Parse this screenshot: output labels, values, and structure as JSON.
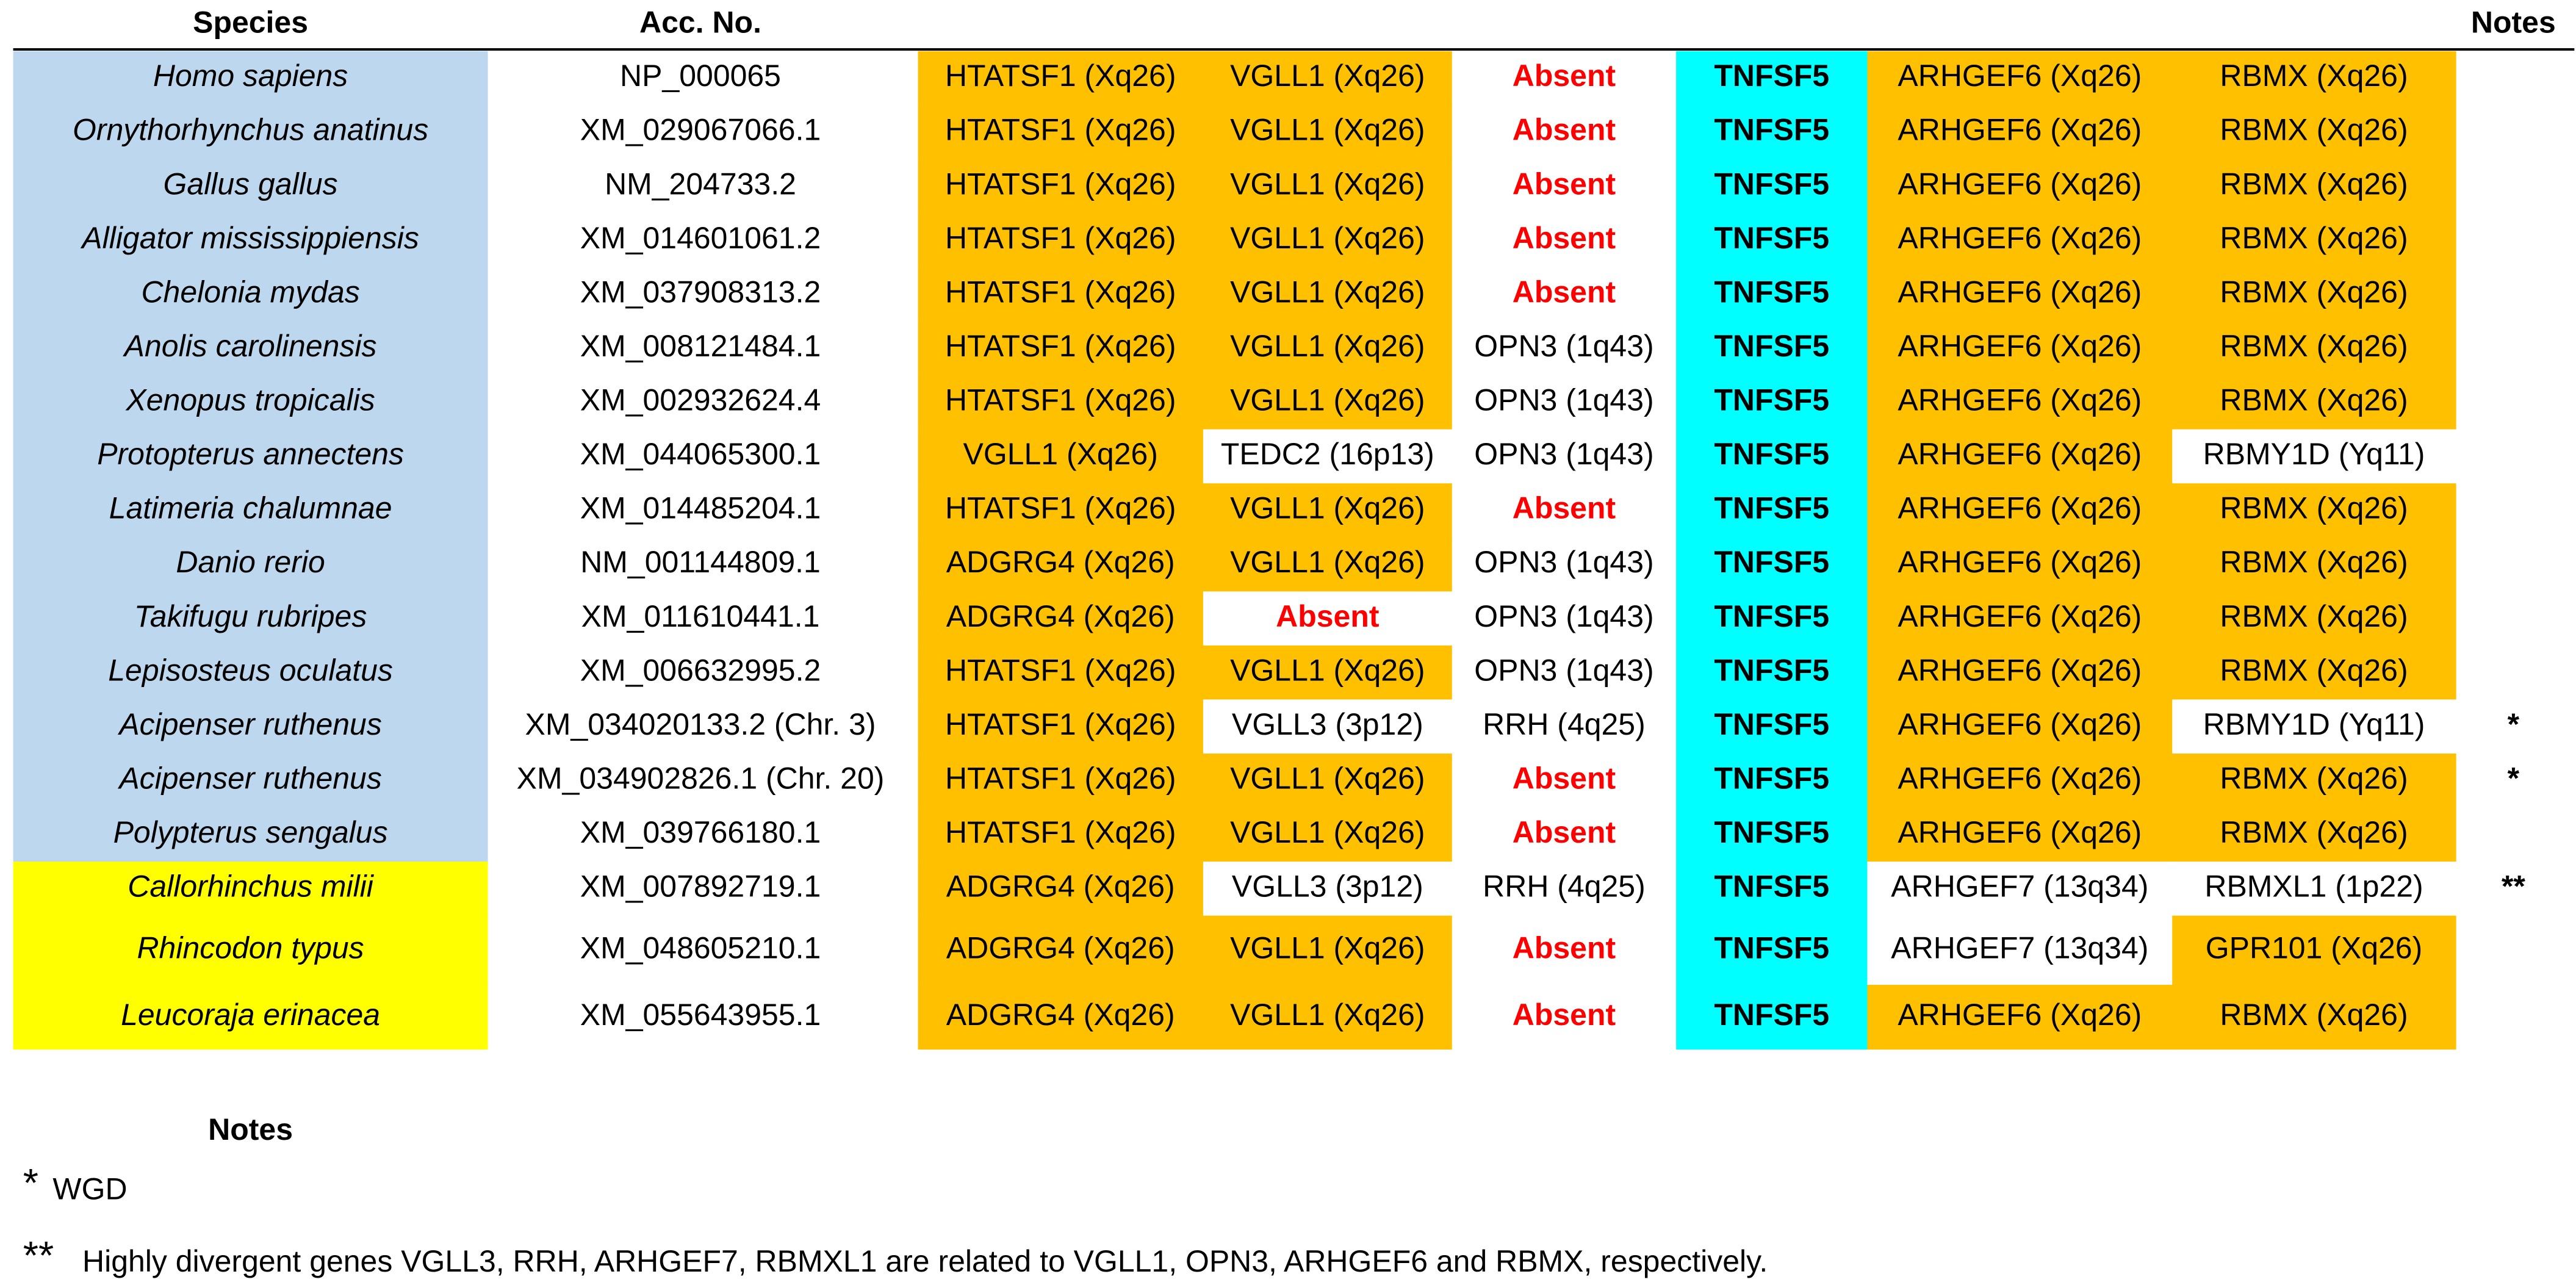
{
  "header": {
    "species": "Species",
    "acc": "Acc. No.",
    "notes": "Notes"
  },
  "table": {
    "rows": [
      {
        "species": "Homo sapiens",
        "fill": "#bdd7ee",
        "acc": "NP_000065",
        "genes": [
          [
            "HTATSF1 (Xq26)",
            "#ffc000"
          ],
          [
            "VGLL1 (Xq26)",
            "#ffc000"
          ],
          [
            "Absent",
            "#ffffff",
            "#ff0000"
          ],
          [
            "TNFSF5",
            "#00ffff"
          ],
          [
            "ARHGEF6 (Xq26)",
            "#ffc000"
          ],
          [
            "RBMX (Xq26)",
            "#ffc000"
          ]
        ]
      },
      {
        "species": "Ornythorhynchus anatinus",
        "fill": "#bdd7ee",
        "acc": "XM_029067066.1",
        "genes": [
          [
            "HTATSF1 (Xq26)",
            "#ffc000"
          ],
          [
            "VGLL1 (Xq26)",
            "#ffc000"
          ],
          [
            "Absent",
            "#ffffff",
            "#ff0000"
          ],
          [
            "TNFSF5",
            "#00ffff"
          ],
          [
            "ARHGEF6 (Xq26)",
            "#ffc000"
          ],
          [
            "RBMX (Xq26)",
            "#ffc000"
          ]
        ]
      },
      {
        "species": "Gallus gallus",
        "fill": "#bdd7ee",
        "acc": "NM_204733.2",
        "genes": [
          [
            "HTATSF1 (Xq26)",
            "#ffc000"
          ],
          [
            "VGLL1 (Xq26)",
            "#ffc000"
          ],
          [
            "Absent",
            "#ffffff",
            "#ff0000"
          ],
          [
            "TNFSF5",
            "#00ffff"
          ],
          [
            "ARHGEF6 (Xq26)",
            "#ffc000"
          ],
          [
            "RBMX (Xq26)",
            "#ffc000"
          ]
        ]
      },
      {
        "species": "Alligator mississippiensis",
        "fill": "#bdd7ee",
        "acc": "XM_014601061.2",
        "genes": [
          [
            "HTATSF1 (Xq26)",
            "#ffc000"
          ],
          [
            "VGLL1 (Xq26)",
            "#ffc000"
          ],
          [
            "Absent",
            "#ffffff",
            "#ff0000"
          ],
          [
            "TNFSF5",
            "#00ffff"
          ],
          [
            "ARHGEF6 (Xq26)",
            "#ffc000"
          ],
          [
            "RBMX (Xq26)",
            "#ffc000"
          ]
        ]
      },
      {
        "species": "Chelonia mydas",
        "fill": "#bdd7ee",
        "acc": "XM_037908313.2",
        "genes": [
          [
            "HTATSF1 (Xq26)",
            "#ffc000"
          ],
          [
            "VGLL1 (Xq26)",
            "#ffc000"
          ],
          [
            "Absent",
            "#ffffff",
            "#ff0000"
          ],
          [
            "TNFSF5",
            "#00ffff"
          ],
          [
            "ARHGEF6 (Xq26)",
            "#ffc000"
          ],
          [
            "RBMX (Xq26)",
            "#ffc000"
          ]
        ]
      },
      {
        "species": "Anolis carolinensis",
        "fill": "#bdd7ee",
        "acc": "XM_008121484.1",
        "genes": [
          [
            "HTATSF1 (Xq26)",
            "#ffc000"
          ],
          [
            "VGLL1 (Xq26)",
            "#ffc000"
          ],
          [
            "OPN3 (1q43)",
            "#ffffff"
          ],
          [
            "TNFSF5",
            "#00ffff"
          ],
          [
            "ARHGEF6 (Xq26)",
            "#ffc000"
          ],
          [
            "RBMX (Xq26)",
            "#ffc000"
          ]
        ]
      },
      {
        "species": "Xenopus tropicalis",
        "fill": "#bdd7ee",
        "acc": "XM_002932624.4",
        "genes": [
          [
            "HTATSF1 (Xq26)",
            "#ffc000"
          ],
          [
            "VGLL1 (Xq26)",
            "#ffc000"
          ],
          [
            "OPN3 (1q43)",
            "#ffffff"
          ],
          [
            "TNFSF5",
            "#00ffff"
          ],
          [
            "ARHGEF6 (Xq26)",
            "#ffc000"
          ],
          [
            "RBMX (Xq26)",
            "#ffc000"
          ]
        ]
      },
      {
        "species": "Protopterus annectens",
        "fill": "#bdd7ee",
        "acc": "XM_044065300.1",
        "genes": [
          [
            "VGLL1 (Xq26)",
            "#ffc000"
          ],
          [
            "TEDC2 (16p13)",
            "#ffffff"
          ],
          [
            "OPN3 (1q43)",
            "#ffffff"
          ],
          [
            "TNFSF5",
            "#00ffff"
          ],
          [
            "ARHGEF6 (Xq26)",
            "#ffc000"
          ],
          [
            "RBMY1D (Yq11)",
            "#ffffff"
          ]
        ]
      },
      {
        "species": "Latimeria chalumnae",
        "fill": "#bdd7ee",
        "acc": "XM_014485204.1",
        "genes": [
          [
            "HTATSF1 (Xq26)",
            "#ffc000"
          ],
          [
            "VGLL1 (Xq26)",
            "#ffc000"
          ],
          [
            "Absent",
            "#ffffff",
            "#ff0000"
          ],
          [
            "TNFSF5",
            "#00ffff"
          ],
          [
            "ARHGEF6 (Xq26)",
            "#ffc000"
          ],
          [
            "RBMX (Xq26)",
            "#ffc000"
          ]
        ]
      },
      {
        "species": "Danio rerio",
        "fill": "#bdd7ee",
        "acc": "NM_001144809.1",
        "genes": [
          [
            "ADGRG4 (Xq26)",
            "#ffc000"
          ],
          [
            "VGLL1 (Xq26)",
            "#ffc000"
          ],
          [
            "OPN3 (1q43)",
            "#ffffff"
          ],
          [
            "TNFSF5",
            "#00ffff"
          ],
          [
            "ARHGEF6 (Xq26)",
            "#ffc000"
          ],
          [
            "RBMX (Xq26)",
            "#ffc000"
          ]
        ]
      },
      {
        "species": "Takifugu rubripes",
        "fill": "#bdd7ee",
        "acc": "XM_011610441.1",
        "genes": [
          [
            "ADGRG4 (Xq26)",
            "#ffc000"
          ],
          [
            "Absent",
            "#ffffff",
            "#ff0000"
          ],
          [
            "OPN3 (1q43)",
            "#ffffff"
          ],
          [
            "TNFSF5",
            "#00ffff"
          ],
          [
            "ARHGEF6 (Xq26)",
            "#ffc000"
          ],
          [
            "RBMX (Xq26)",
            "#ffc000"
          ]
        ]
      },
      {
        "species": "Lepisosteus oculatus",
        "fill": "#bdd7ee",
        "acc": "XM_006632995.2",
        "genes": [
          [
            "HTATSF1 (Xq26)",
            "#ffc000"
          ],
          [
            "VGLL1 (Xq26)",
            "#ffc000"
          ],
          [
            "OPN3 (1q43)",
            "#ffffff"
          ],
          [
            "TNFSF5",
            "#00ffff"
          ],
          [
            "ARHGEF6 (Xq26)",
            "#ffc000"
          ],
          [
            "RBMX (Xq26)",
            "#ffc000"
          ]
        ]
      },
      {
        "species": "Acipenser ruthenus",
        "fill": "#bdd7ee",
        "acc": "XM_034020133.2 (Chr. 3)",
        "genes": [
          [
            "HTATSF1 (Xq26)",
            "#ffc000"
          ],
          [
            "VGLL3 (3p12)",
            "#ffffff"
          ],
          [
            "RRH (4q25)",
            "#ffffff"
          ],
          [
            "TNFSF5",
            "#00ffff"
          ],
          [
            "ARHGEF6 (Xq26)",
            "#ffc000"
          ],
          [
            "RBMY1D (Yq11)",
            "#ffffff"
          ]
        ],
        "note": "*"
      },
      {
        "species": "Acipenser ruthenus",
        "fill": "#bdd7ee",
        "acc": "XM_034902826.1 (Chr. 20)",
        "genes": [
          [
            "HTATSF1 (Xq26)",
            "#ffc000"
          ],
          [
            "VGLL1 (Xq26)",
            "#ffc000"
          ],
          [
            "Absent",
            "#ffffff",
            "#ff0000"
          ],
          [
            "TNFSF5",
            "#00ffff"
          ],
          [
            "ARHGEF6 (Xq26)",
            "#ffc000"
          ],
          [
            "RBMX (Xq26)",
            "#ffc000"
          ]
        ],
        "note": "*"
      },
      {
        "species": "Polypterus sengalus",
        "fill": "#bdd7ee",
        "acc": "XM_039766180.1",
        "genes": [
          [
            "HTATSF1 (Xq26)",
            "#ffc000"
          ],
          [
            "VGLL1 (Xq26)",
            "#ffc000"
          ],
          [
            "Absent",
            "#ffffff",
            "#ff0000"
          ],
          [
            "TNFSF5",
            "#00ffff"
          ],
          [
            "ARHGEF6 (Xq26)",
            "#ffc000"
          ],
          [
            "RBMX (Xq26)",
            "#ffc000"
          ]
        ]
      },
      {
        "species": "Callorhinchus milii",
        "fill": "#ffff00",
        "acc": "XM_007892719.1",
        "genes": [
          [
            "ADGRG4 (Xq26)",
            "#ffc000"
          ],
          [
            "VGLL3 (3p12)",
            "#ffffff"
          ],
          [
            "RRH (4q25)",
            "#ffffff"
          ],
          [
            "TNFSF5",
            "#00ffff"
          ],
          [
            "ARHGEF7 (13q34)",
            "#ffffff"
          ],
          [
            "RBMXL1 (1p22)",
            "#ffffff"
          ]
        ],
        "note": "**"
      },
      {
        "species": "Rhincodon typus",
        "fill": "#ffff00",
        "acc": "XM_048605210.1",
        "genes": [
          [
            "ADGRG4 (Xq26)",
            "#ffc000"
          ],
          [
            "VGLL1 (Xq26)",
            "#ffc000"
          ],
          [
            "Absent",
            "#ffffff",
            "#ff0000"
          ],
          [
            "TNFSF5",
            "#00ffff"
          ],
          [
            "ARHGEF7 (13q34)",
            "#ffffff"
          ],
          [
            "GPR101 (Xq26)",
            "#ffc000"
          ]
        ]
      },
      {
        "species": "Leucoraja erinacea",
        "fill": "#ffff00",
        "acc": "XM_055643955.1",
        "genes": [
          [
            "ADGRG4 (Xq26)",
            "#ffc000"
          ],
          [
            "VGLL1 (Xq26)",
            "#ffc000"
          ],
          [
            "Absent",
            "#ffffff",
            "#ff0000"
          ],
          [
            "TNFSF5",
            "#00ffff"
          ],
          [
            "ARHGEF6 (Xq26)",
            "#ffc000"
          ],
          [
            "RBMX (Xq26)",
            "#ffc000"
          ]
        ]
      }
    ]
  },
  "notes": {
    "title": "Notes",
    "items": [
      {
        "mark": "*",
        "text": "WGD"
      },
      {
        "mark": "**",
        "text": "Highly divergent genes VGLL3, RRH, ARHGEF7, RBMXL1 are related to VGLL1, OPN3, ARHGEF6 and RBMX, respectively."
      }
    ]
  }
}
